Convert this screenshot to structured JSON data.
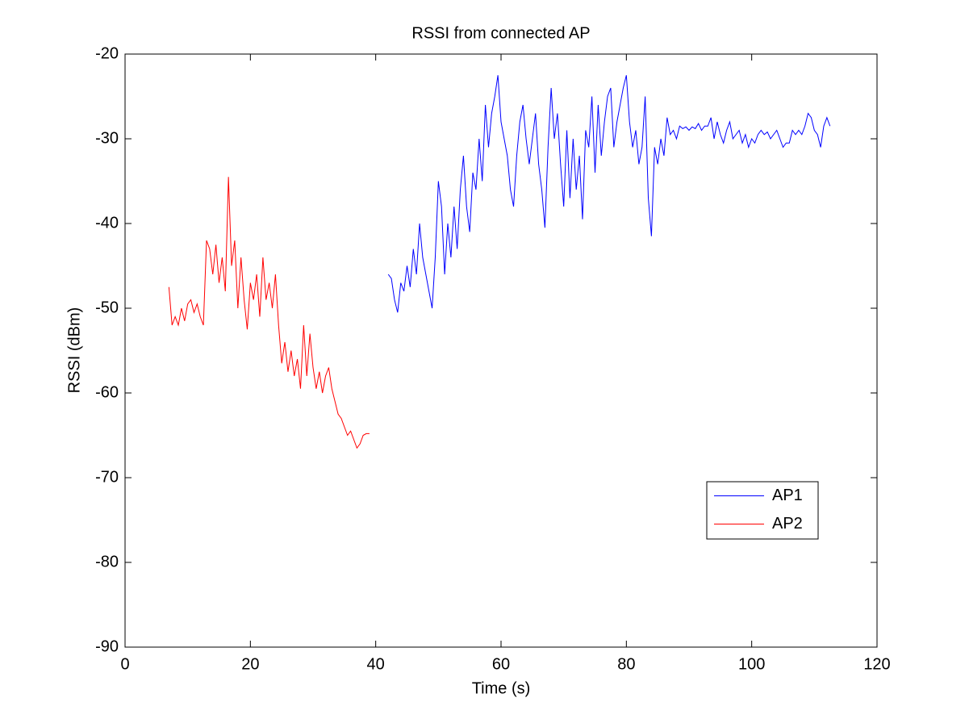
{
  "chart_data": {
    "type": "line",
    "title": "RSSI from connected AP",
    "x_label": "Time (s)",
    "y_label": "RSSI (dBm)",
    "xlim": [
      0,
      120
    ],
    "xticks": [
      0,
      20,
      40,
      60,
      80,
      100,
      120
    ],
    "ylim": [
      -90,
      -20
    ],
    "yticks": [
      -90,
      -80,
      -70,
      -60,
      -50,
      -40,
      -30,
      -20
    ],
    "grid": false,
    "legend": "lower right",
    "series": [
      {
        "name": "AP1",
        "color": "#0000ff",
        "x": [
          42,
          42.5,
          43,
          43.5,
          44,
          44.5,
          45,
          45.5,
          46,
          46.5,
          47,
          47.5,
          48,
          48.5,
          49,
          49.5,
          50,
          50.5,
          51,
          51.5,
          52,
          52.5,
          53,
          53.5,
          54,
          54.5,
          55,
          55.5,
          56,
          56.5,
          57,
          57.5,
          58,
          58.5,
          59,
          59.5,
          60,
          60.5,
          61,
          61.5,
          62,
          62.5,
          63,
          63.5,
          64,
          64.5,
          65,
          65.5,
          66,
          66.5,
          67,
          67.5,
          68,
          68.5,
          69,
          69.5,
          70,
          70.5,
          71,
          71.5,
          72,
          72.5,
          73,
          73.5,
          74,
          74.5,
          75,
          75.5,
          76,
          76.5,
          77,
          77.5,
          78,
          78.5,
          79,
          79.5,
          80,
          80.5,
          81,
          81.5,
          82,
          82.5,
          83,
          83.5,
          84,
          84.5,
          85,
          85.5,
          86,
          86.5,
          87,
          87.5,
          88,
          88.5,
          89,
          89.5,
          90,
          90.5,
          91,
          91.5,
          92,
          92.5,
          93,
          93.5,
          94,
          94.5,
          95,
          95.5,
          96,
          96.5,
          97,
          97.5,
          98,
          98.5,
          99,
          99.5,
          100,
          100.5,
          101,
          101.5,
          102,
          102.5,
          103,
          103.5,
          104,
          104.5,
          105,
          105.5,
          106,
          106.5,
          107,
          107.5,
          108,
          108.5,
          109,
          109.5,
          110,
          110.5,
          111,
          111.5,
          112,
          112.5
        ],
        "values": [
          -46,
          -46.5,
          -49,
          -50.5,
          -47,
          -48,
          -45,
          -47.5,
          -43,
          -46,
          -40,
          -44,
          -46,
          -48,
          -50,
          -44,
          -35,
          -38,
          -46,
          -40,
          -44,
          -38,
          -43,
          -36,
          -32,
          -38,
          -41,
          -34,
          -36,
          -30,
          -35,
          -26,
          -31,
          -27,
          -25,
          -22.5,
          -28,
          -30,
          -32,
          -36,
          -38,
          -32,
          -28,
          -26,
          -30,
          -33,
          -30,
          -27,
          -33,
          -36,
          -40.5,
          -31,
          -24,
          -30,
          -27,
          -33,
          -38,
          -29,
          -37,
          -30,
          -36,
          -32,
          -39.5,
          -29,
          -31,
          -25,
          -34,
          -26,
          -32,
          -28,
          -25,
          -24,
          -31,
          -28,
          -26,
          -24,
          -22.5,
          -28,
          -31,
          -29,
          -33,
          -31,
          -25,
          -37,
          -41.5,
          -31,
          -33,
          -30,
          -32,
          -27.5,
          -29.5,
          -29,
          -30,
          -28.5,
          -28.8,
          -28.6,
          -29,
          -28.6,
          -28.8,
          -28.2,
          -29,
          -28.5,
          -28.5,
          -27.5,
          -30,
          -28,
          -29.5,
          -30.5,
          -29,
          -28,
          -30,
          -29.5,
          -29,
          -30.5,
          -29.5,
          -31,
          -30,
          -30.5,
          -29.5,
          -29,
          -29.5,
          -29.2,
          -30,
          -29.5,
          -29,
          -30,
          -31,
          -30.5,
          -30.5,
          -29,
          -29.5,
          -29,
          -29.5,
          -28.5,
          -27,
          -27.5,
          -29,
          -29.5,
          -31,
          -28.5,
          -27.5,
          -28.5
        ]
      },
      {
        "name": "AP2",
        "color": "#ff0000",
        "x": [
          7,
          7.5,
          8,
          8.5,
          9,
          9.5,
          10,
          10.5,
          11,
          11.5,
          12,
          12.5,
          13,
          13.5,
          14,
          14.5,
          15,
          15.5,
          16,
          16.5,
          17,
          17.5,
          18,
          18.5,
          19,
          19.5,
          20,
          20.5,
          21,
          21.5,
          22,
          22.5,
          23,
          23.5,
          24,
          24.5,
          25,
          25.5,
          26,
          26.5,
          27,
          27.5,
          28,
          28.5,
          29,
          29.5,
          30,
          30.5,
          31,
          31.5,
          32,
          32.5,
          33,
          33.5,
          34,
          34.5,
          35,
          35.5,
          36,
          36.5,
          37,
          37.5,
          38,
          38.5,
          39
        ],
        "values": [
          -47.5,
          -52,
          -51,
          -52,
          -50,
          -51.5,
          -49.5,
          -49,
          -50.5,
          -49.5,
          -51,
          -52,
          -42,
          -43,
          -46,
          -42.5,
          -47,
          -44,
          -48,
          -34.5,
          -45,
          -42,
          -50,
          -44,
          -49,
          -52.5,
          -47,
          -49,
          -46,
          -51,
          -44,
          -49,
          -47,
          -50,
          -46,
          -52,
          -56.5,
          -54,
          -57.5,
          -55,
          -58,
          -56,
          -59.5,
          -52,
          -58,
          -53,
          -57,
          -59.5,
          -57.5,
          -60,
          -58,
          -57,
          -59.5,
          -61,
          -62.5,
          -63,
          -64,
          -65,
          -64.5,
          -65.5,
          -66.5,
          -66,
          -65,
          -64.8,
          -64.8
        ]
      }
    ]
  }
}
